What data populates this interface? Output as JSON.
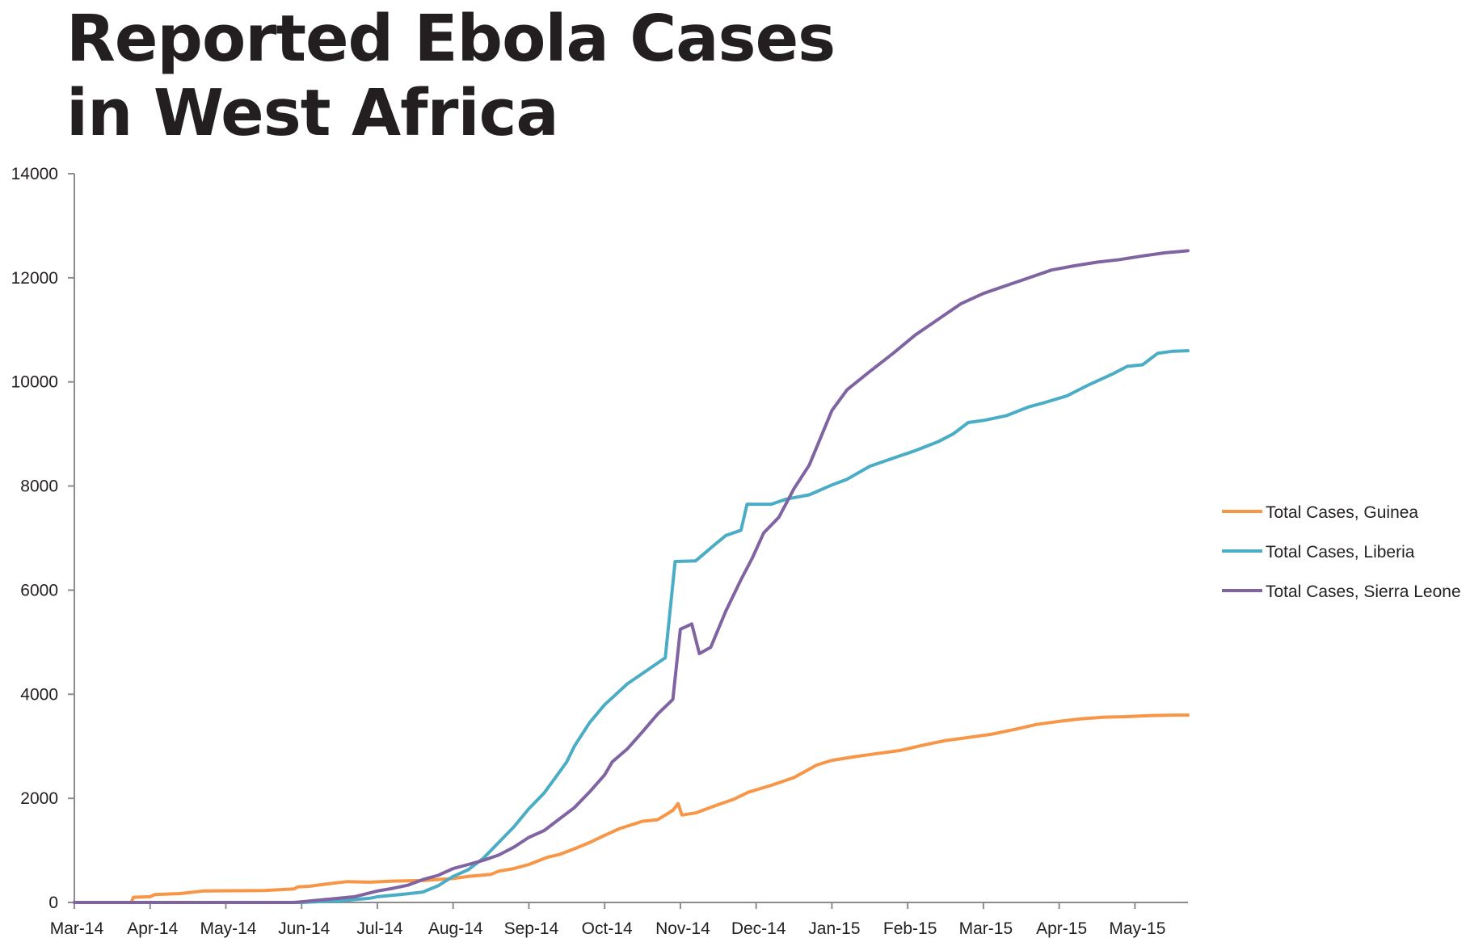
{
  "chart_data": {
    "type": "line",
    "title_lines": [
      "Reported Ebola Cases",
      "in West Africa"
    ],
    "xlabel": "",
    "ylabel": "",
    "x_tick_labels": [
      "Mar-14",
      "Apr-14",
      "May-14",
      "Jun-14",
      "Jul-14",
      "Aug-14",
      "Sep-14",
      "Oct-14",
      "Nov-14",
      "Dec-14",
      "Jan-15",
      "Feb-15",
      "Mar-15",
      "Apr-15",
      "May-15"
    ],
    "x_range_months": [
      0,
      14.7
    ],
    "y_ticks": [
      0,
      2000,
      4000,
      6000,
      8000,
      10000,
      12000,
      14000
    ],
    "ylim": [
      0,
      14000
    ],
    "grid": false,
    "legend_position": "right",
    "series": [
      {
        "name": "Total Cases, Guinea",
        "color": "#f79646",
        "x": [
          0,
          0.75,
          0.78,
          1.0,
          1.06,
          1.4,
          1.7,
          2.5,
          2.9,
          2.95,
          3.1,
          3.3,
          3.6,
          3.9,
          4.2,
          4.6,
          5.0,
          5.2,
          5.5,
          5.6,
          5.8,
          6.0,
          6.25,
          6.4,
          6.6,
          6.8,
          7.0,
          7.2,
          7.5,
          7.7,
          7.9,
          7.97,
          8.02,
          8.2,
          8.5,
          8.7,
          8.9,
          9.2,
          9.5,
          9.8,
          10.0,
          10.3,
          10.6,
          10.9,
          11.2,
          11.5,
          11.8,
          12.1,
          12.4,
          12.7,
          13.0,
          13.3,
          13.6,
          13.9,
          14.2,
          14.5,
          14.7
        ],
        "values": [
          0,
          0,
          100,
          110,
          150,
          170,
          220,
          230,
          260,
          300,
          310,
          350,
          400,
          390,
          410,
          420,
          460,
          500,
          540,
          600,
          650,
          730,
          870,
          920,
          1030,
          1150,
          1290,
          1420,
          1560,
          1590,
          1770,
          1900,
          1680,
          1720,
          1880,
          1980,
          2120,
          2250,
          2400,
          2640,
          2730,
          2800,
          2860,
          2920,
          3020,
          3110,
          3170,
          3230,
          3320,
          3420,
          3480,
          3530,
          3560,
          3570,
          3590,
          3600,
          3600
        ]
      },
      {
        "name": "Total Cases, Liberia",
        "color": "#4bacc6",
        "x": [
          0,
          3.0,
          3.5,
          3.9,
          4.0,
          4.3,
          4.6,
          4.8,
          5.0,
          5.2,
          5.4,
          5.6,
          5.8,
          6.0,
          6.2,
          6.35,
          6.5,
          6.6,
          6.8,
          7.0,
          7.15,
          7.3,
          7.6,
          7.8,
          7.93,
          8.2,
          8.45,
          8.6,
          8.8,
          8.88,
          9.2,
          9.4,
          9.7,
          10.0,
          10.2,
          10.5,
          10.8,
          11.1,
          11.4,
          11.6,
          11.8,
          12.0,
          12.3,
          12.6,
          12.8,
          13.1,
          13.4,
          13.7,
          13.9,
          14.1,
          14.3,
          14.5,
          14.7
        ],
        "values": [
          0,
          0,
          30,
          80,
          110,
          150,
          200,
          320,
          500,
          630,
          850,
          1150,
          1450,
          1800,
          2100,
          2400,
          2700,
          3000,
          3450,
          3800,
          4000,
          4200,
          4500,
          4700,
          6550,
          6560,
          6870,
          7050,
          7150,
          7650,
          7650,
          7750,
          7830,
          8020,
          8130,
          8380,
          8530,
          8680,
          8850,
          9000,
          9220,
          9260,
          9350,
          9520,
          9600,
          9730,
          9950,
          10150,
          10300,
          10330,
          10550,
          10590,
          10600
        ]
      },
      {
        "name": "Total Cases, Sierra Leone",
        "color": "#8064a2",
        "x": [
          0,
          2.9,
          3.2,
          3.7,
          4.0,
          4.2,
          4.4,
          4.6,
          4.8,
          5.0,
          5.2,
          5.4,
          5.6,
          5.8,
          6.0,
          6.2,
          6.4,
          6.6,
          6.8,
          7.0,
          7.1,
          7.3,
          7.5,
          7.7,
          7.9,
          8.0,
          8.15,
          8.25,
          8.4,
          8.6,
          8.8,
          8.95,
          9.1,
          9.3,
          9.5,
          9.7,
          10.0,
          10.2,
          10.5,
          10.8,
          11.1,
          11.4,
          11.7,
          12.0,
          12.3,
          12.6,
          12.9,
          13.2,
          13.5,
          13.8,
          14.1,
          14.4,
          14.7
        ],
        "values": [
          0,
          0,
          40,
          110,
          220,
          270,
          330,
          440,
          520,
          650,
          730,
          810,
          910,
          1060,
          1250,
          1380,
          1600,
          1820,
          2120,
          2450,
          2700,
          2950,
          3280,
          3620,
          3900,
          5250,
          5350,
          4780,
          4900,
          5600,
          6200,
          6620,
          7100,
          7400,
          7950,
          8400,
          9450,
          9850,
          10200,
          10540,
          10900,
          11200,
          11500,
          11700,
          11850,
          12000,
          12150,
          12230,
          12300,
          12350,
          12420,
          12480,
          12520
        ]
      }
    ]
  }
}
